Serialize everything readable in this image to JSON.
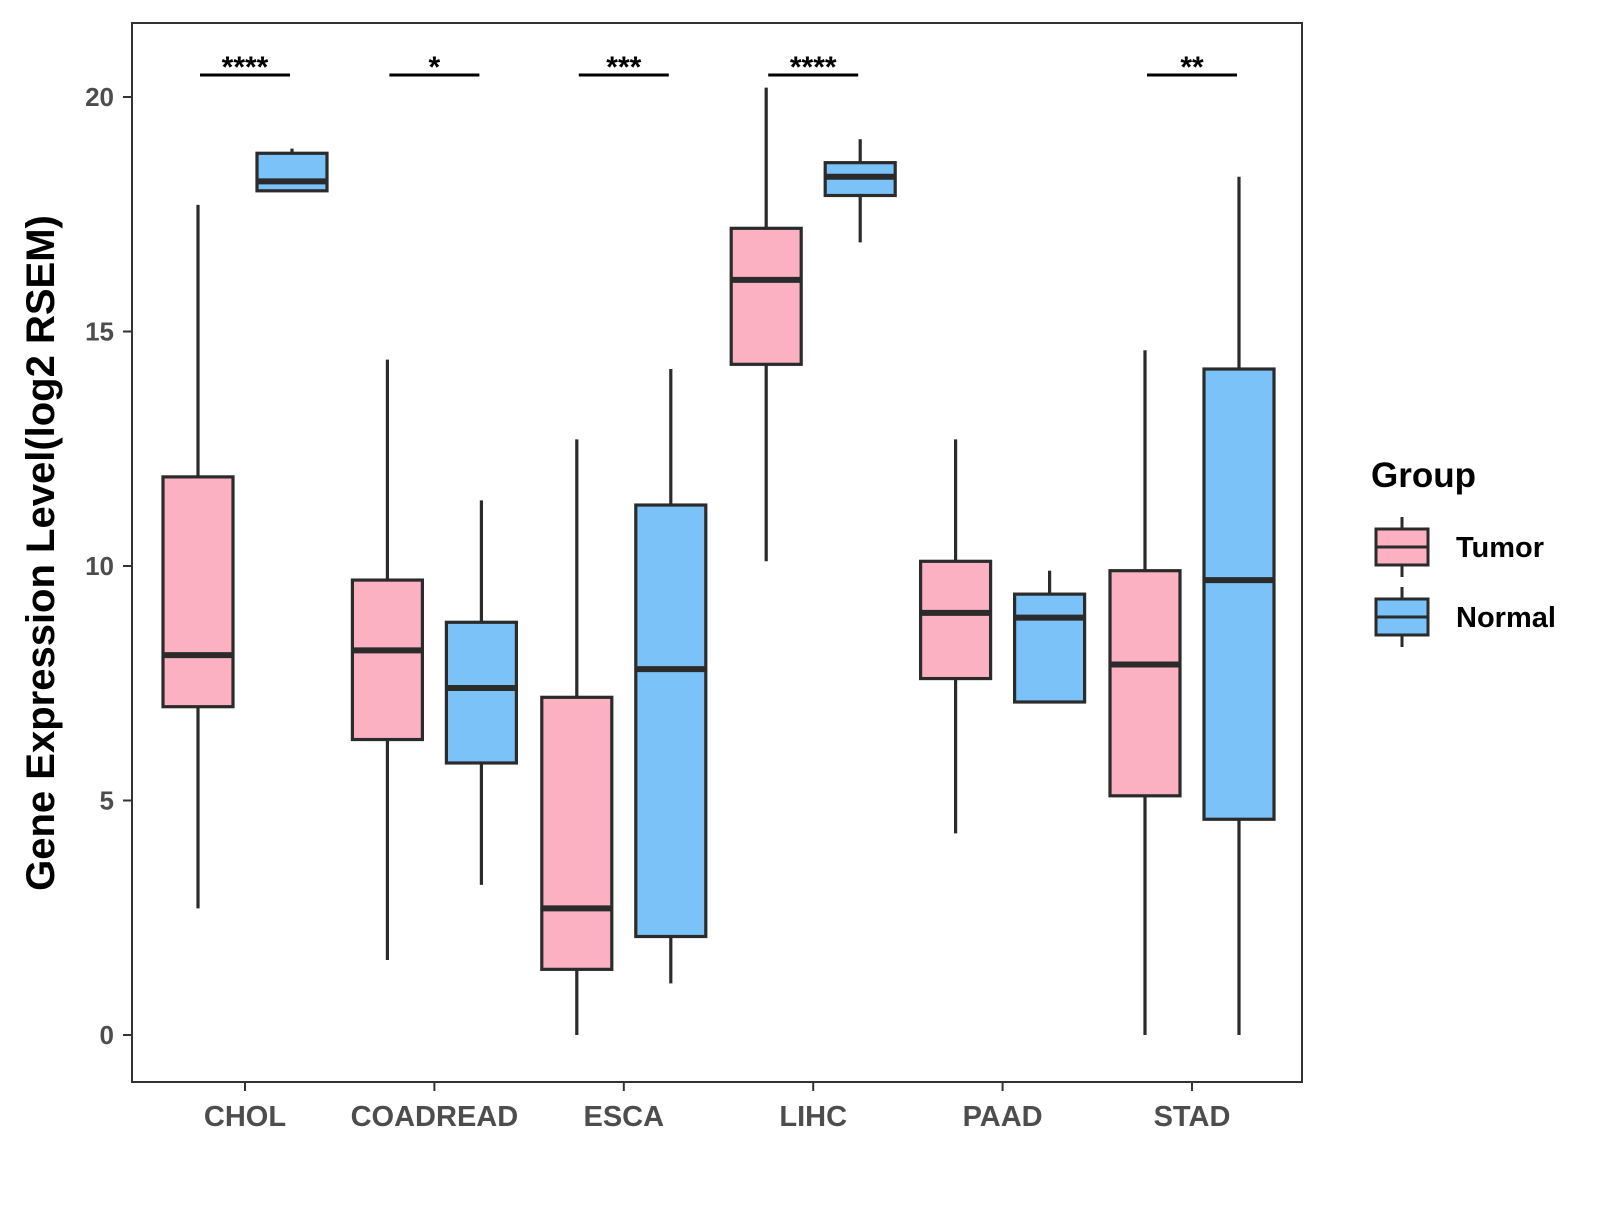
{
  "chart_data": {
    "type": "boxplot",
    "title": "",
    "xlabel": "",
    "ylabel": "Gene Expression Level(log2 RSEM)",
    "ylim": [
      -1,
      21.6
    ],
    "yticks": [
      0,
      5,
      10,
      15,
      20
    ],
    "grid": false,
    "categories": [
      "CHOL",
      "COADREAD",
      "ESCA",
      "LIHC",
      "PAAD",
      "STAD"
    ],
    "legend": {
      "title": "Group",
      "position": "right",
      "entries": [
        {
          "name": "Tumor",
          "color": "#FBB1C2"
        },
        {
          "name": "Normal",
          "color": "#7AC2F8"
        }
      ]
    },
    "series": [
      {
        "name": "Tumor",
        "color": "#FBB1C2",
        "boxes": [
          {
            "min": 2.7,
            "q1": 7.0,
            "median": 8.1,
            "q3": 11.9,
            "max": 17.7
          },
          {
            "min": 1.6,
            "q1": 6.3,
            "median": 8.2,
            "q3": 9.7,
            "max": 14.4
          },
          {
            "min": 0.0,
            "q1": 1.4,
            "median": 2.7,
            "q3": 7.2,
            "max": 12.7
          },
          {
            "min": 10.1,
            "q1": 14.3,
            "median": 16.1,
            "q3": 17.2,
            "max": 20.2
          },
          {
            "min": 4.3,
            "q1": 7.6,
            "median": 9.0,
            "q3": 10.1,
            "max": 12.7
          },
          {
            "min": 0.0,
            "q1": 5.1,
            "median": 7.9,
            "q3": 9.9,
            "max": 14.6
          }
        ]
      },
      {
        "name": "Normal",
        "color": "#7AC2F8",
        "boxes": [
          {
            "min": 18.0,
            "q1": 18.0,
            "median": 18.2,
            "q3": 18.8,
            "max": 18.9
          },
          {
            "min": 3.2,
            "q1": 5.8,
            "median": 7.4,
            "q3": 8.8,
            "max": 11.4
          },
          {
            "min": 1.1,
            "q1": 2.1,
            "median": 7.8,
            "q3": 11.3,
            "max": 14.2
          },
          {
            "min": 16.9,
            "q1": 17.9,
            "median": 18.3,
            "q3": 18.6,
            "max": 19.1
          },
          {
            "min": 7.1,
            "q1": 7.1,
            "median": 8.9,
            "q3": 9.4,
            "max": 9.9
          },
          {
            "min": 0.0,
            "q1": 4.6,
            "median": 9.7,
            "q3": 14.2,
            "max": 18.3
          }
        ]
      }
    ],
    "significance": [
      {
        "category": "CHOL",
        "label": "****"
      },
      {
        "category": "COADREAD",
        "label": "*"
      },
      {
        "category": "ESCA",
        "label": "***"
      },
      {
        "category": "LIHC",
        "label": "****"
      },
      {
        "category": "PAAD",
        "label": ""
      },
      {
        "category": "STAD",
        "label": "**"
      }
    ]
  }
}
